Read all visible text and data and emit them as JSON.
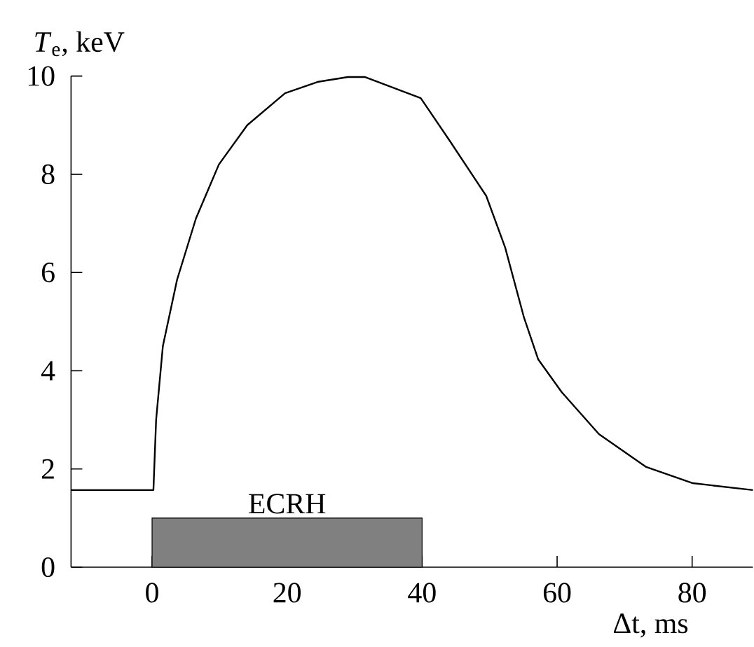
{
  "chart_data": {
    "type": "line",
    "xlabel": "Δt, ms",
    "ylabel": "*T*$_{e}$, keV",
    "xlim": [
      -12,
      89
    ],
    "ylim": [
      0,
      10
    ],
    "xticks": [
      0,
      20,
      40,
      60,
      80
    ],
    "yticks": [
      0,
      2,
      4,
      6,
      8,
      10
    ],
    "series": [
      {
        "color": "#000000",
        "x": [
          -12,
          0,
          0.2,
          0.6,
          1.6,
          3.7,
          6.5,
          9.9,
          14.1,
          19.7,
          24.5,
          29.0,
          31.5,
          39.8,
          44,
          49.5,
          52.3,
          55.1,
          57.2,
          60.7,
          66.2,
          73.2,
          80.1,
          89
        ],
        "values": [
          1.57,
          1.57,
          1.57,
          3.0,
          4.5,
          5.85,
          7.1,
          8.2,
          9.0,
          9.65,
          9.88,
          9.98,
          9.98,
          9.55,
          8.7,
          7.56,
          6.51,
          5.08,
          4.23,
          3.56,
          2.71,
          2.04,
          1.71,
          1.57
        ]
      },
      {
        "type": "area",
        "name": "ECRH",
        "color": "#808080",
        "x": [
          0,
          40
        ],
        "values": [
          1,
          1
        ]
      }
    ]
  }
}
